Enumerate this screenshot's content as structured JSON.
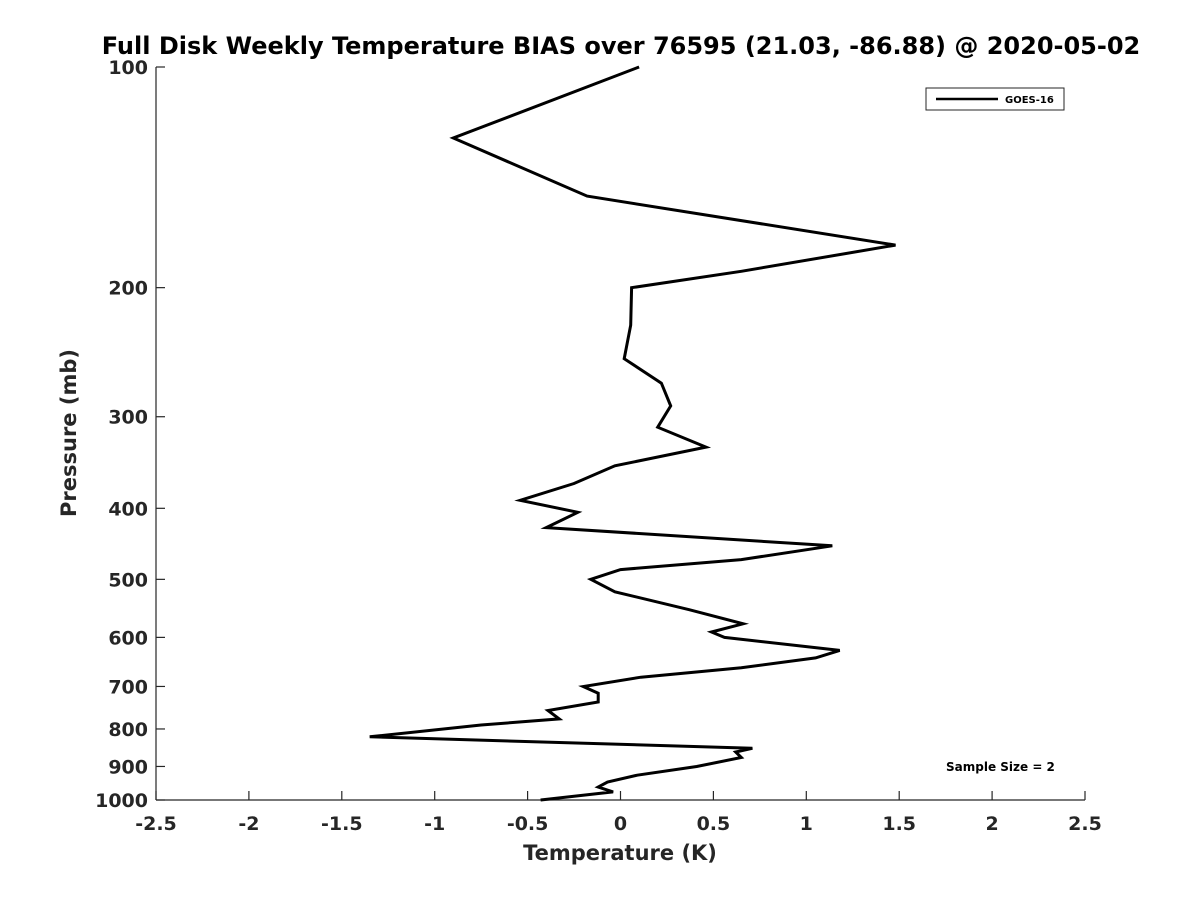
{
  "chart_data": {
    "type": "line",
    "title": "Full Disk Weekly Temperature BIAS over 76595 (21.03, -86.88) @ 2020-05-02",
    "xlabel": "Temperature (K)",
    "ylabel": "Pressure (mb)",
    "xlim": [
      -2.5,
      2.5
    ],
    "ylim": [
      100,
      1000
    ],
    "y_scale": "log",
    "y_reversed": true,
    "x_ticks": [
      "-2.5",
      "-2",
      "-1.5",
      "-1",
      "-0.5",
      "0",
      "0.5",
      "1",
      "1.5",
      "2",
      "2.5"
    ],
    "y_ticks": [
      "100",
      "200",
      "300",
      "400",
      "500",
      "600",
      "700",
      "800",
      "900",
      "1000"
    ],
    "grid": false,
    "legend": {
      "placement": "top-right",
      "entries": [
        "GOES-16"
      ]
    },
    "annotation": "Sample Size = 2",
    "series": [
      {
        "name": "GOES-16",
        "color": "#000000",
        "points": [
          {
            "x": 0.1,
            "y": 100
          },
          {
            "x": -0.9,
            "y": 125
          },
          {
            "x": -0.18,
            "y": 150
          },
          {
            "x": 1.48,
            "y": 175
          },
          {
            "x": 0.65,
            "y": 190
          },
          {
            "x": 0.06,
            "y": 200
          },
          {
            "x": 0.055,
            "y": 225
          },
          {
            "x": 0.02,
            "y": 250
          },
          {
            "x": 0.22,
            "y": 270
          },
          {
            "x": 0.27,
            "y": 290
          },
          {
            "x": 0.2,
            "y": 310
          },
          {
            "x": 0.46,
            "y": 330
          },
          {
            "x": -0.03,
            "y": 350
          },
          {
            "x": -0.25,
            "y": 370
          },
          {
            "x": -0.54,
            "y": 390
          },
          {
            "x": -0.23,
            "y": 405
          },
          {
            "x": -0.4,
            "y": 425
          },
          {
            "x": 1.14,
            "y": 450
          },
          {
            "x": 0.65,
            "y": 470
          },
          {
            "x": 0.0,
            "y": 485
          },
          {
            "x": -0.16,
            "y": 500
          },
          {
            "x": -0.03,
            "y": 520
          },
          {
            "x": 0.37,
            "y": 550
          },
          {
            "x": 0.66,
            "y": 575
          },
          {
            "x": 0.49,
            "y": 590
          },
          {
            "x": 0.56,
            "y": 600
          },
          {
            "x": 1.18,
            "y": 625
          },
          {
            "x": 1.05,
            "y": 640
          },
          {
            "x": 0.65,
            "y": 660
          },
          {
            "x": 0.11,
            "y": 680
          },
          {
            "x": -0.2,
            "y": 700
          },
          {
            "x": -0.12,
            "y": 715
          },
          {
            "x": -0.12,
            "y": 735
          },
          {
            "x": -0.39,
            "y": 755
          },
          {
            "x": -0.33,
            "y": 775
          },
          {
            "x": -0.75,
            "y": 790
          },
          {
            "x": -1.35,
            "y": 820
          },
          {
            "x": 0.71,
            "y": 850
          },
          {
            "x": 0.62,
            "y": 860
          },
          {
            "x": 0.65,
            "y": 875
          },
          {
            "x": 0.41,
            "y": 900
          },
          {
            "x": 0.09,
            "y": 925
          },
          {
            "x": -0.07,
            "y": 945
          },
          {
            "x": -0.12,
            "y": 960
          },
          {
            "x": -0.04,
            "y": 975
          },
          {
            "x": -0.43,
            "y": 1000
          }
        ]
      }
    ]
  }
}
